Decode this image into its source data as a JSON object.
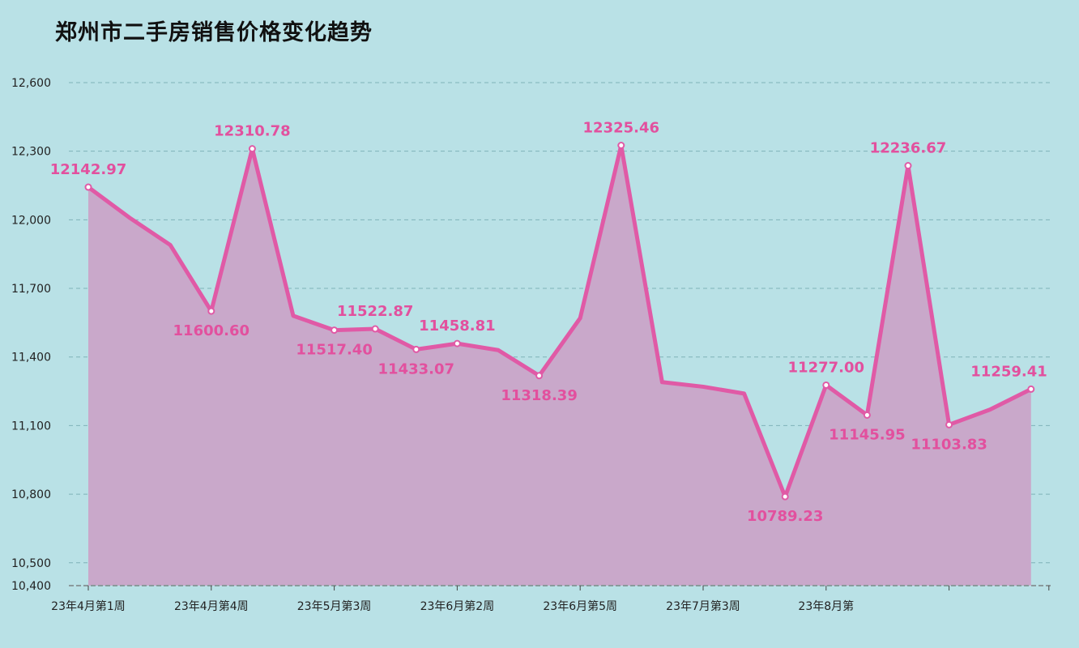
{
  "chart_data": {
    "type": "area",
    "title": "郑州市二手房销售价格变化趋势",
    "xlabel": "",
    "ylabel": "",
    "ylim": [
      10400,
      12600
    ],
    "yticks": [
      10400,
      10500,
      10800,
      11100,
      11400,
      11700,
      12000,
      12300,
      12600
    ],
    "ytick_labels": [
      "10,400",
      "10,500",
      "10,800",
      "11,100",
      "11,400",
      "11,700",
      "12,000",
      "12,300",
      "12,600"
    ],
    "x_tick_labels": [
      {
        "index": 0,
        "label": "23年4月第1周"
      },
      {
        "index": 3,
        "label": "23年4月第4周"
      },
      {
        "index": 6,
        "label": "23年5月第3周"
      },
      {
        "index": 9,
        "label": "23年6月第2周"
      },
      {
        "index": 12,
        "label": "23年6月第5周"
      },
      {
        "index": 15,
        "label": "23年7月第3周"
      },
      {
        "index": 18,
        "label": "23年8月第"
      }
    ],
    "series": [
      {
        "values": [
          12142.97,
          12010,
          11890,
          11600.6,
          12310.78,
          11580,
          11517.4,
          11522.87,
          11433.07,
          11458.81,
          11430,
          11318.39,
          11570,
          12325.46,
          11290,
          11270,
          11240,
          10789.23,
          11277.0,
          11145.95,
          12236.67,
          11103.83,
          11170,
          11259.41
        ],
        "data_labels": [
          {
            "index": 0,
            "text": "12142.97",
            "pos": "above"
          },
          {
            "index": 3,
            "text": "11600.60",
            "pos": "below"
          },
          {
            "index": 4,
            "text": "12310.78",
            "pos": "above"
          },
          {
            "index": 6,
            "text": "11517.40",
            "pos": "below"
          },
          {
            "index": 7,
            "text": "11522.87",
            "pos": "above"
          },
          {
            "index": 8,
            "text": "11433.07",
            "pos": "below"
          },
          {
            "index": 9,
            "text": "11458.81",
            "pos": "above"
          },
          {
            "index": 11,
            "text": "11318.39",
            "pos": "below"
          },
          {
            "index": 13,
            "text": "12325.46",
            "pos": "above"
          },
          {
            "index": 17,
            "text": "10789.23",
            "pos": "below"
          },
          {
            "index": 18,
            "text": "11277.00",
            "pos": "above"
          },
          {
            "index": 19,
            "text": "11145.95",
            "pos": "below"
          },
          {
            "index": 20,
            "text": "12236.67",
            "pos": "above"
          },
          {
            "index": 21,
            "text": "11103.83",
            "pos": "below"
          },
          {
            "index": 23,
            "text": "11259.41",
            "pos": "above"
          }
        ]
      }
    ],
    "grid": true,
    "colors": {
      "line": "#e05aa6",
      "fill": "#c9a8ca",
      "label": "#e2509e",
      "grid": "#7fb2b8",
      "background": "#b9e1e6"
    }
  }
}
